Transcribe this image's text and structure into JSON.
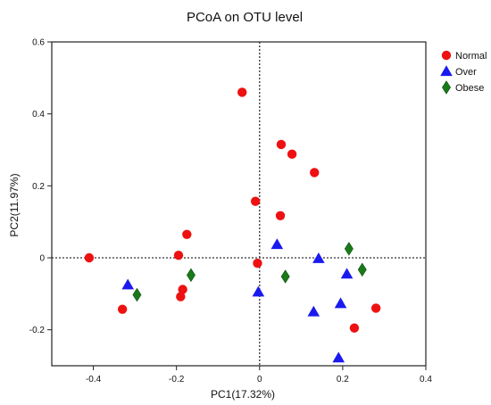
{
  "chart_data": {
    "type": "scatter",
    "title": "PCoA on OTU level",
    "xlabel": "PC1(17.32%)",
    "ylabel": "PC2(11.97%)",
    "xlim": [
      -0.5,
      0.4
    ],
    "ylim": [
      -0.3,
      0.6
    ],
    "xticks": [
      -0.4,
      -0.2,
      0,
      0.2,
      0.4
    ],
    "yticks": [
      -0.2,
      0,
      0.2,
      0.4,
      0.6
    ],
    "xtick_labels": [
      "-0.4",
      "-0.2",
      "0",
      "0.2",
      "0.4"
    ],
    "ytick_labels": [
      "-0.2",
      "0",
      "0.2",
      "0.4",
      "0.6"
    ],
    "reference_lines": {
      "x": 0,
      "y": 0,
      "style": "dotted"
    },
    "grid": false,
    "legend_position": "top-right outside",
    "series": [
      {
        "name": "Normal",
        "marker": "circle",
        "color": "#ee1111",
        "points": [
          [
            -0.41,
            0.0
          ],
          [
            -0.33,
            -0.143
          ],
          [
            -0.195,
            0.007
          ],
          [
            -0.19,
            -0.108
          ],
          [
            -0.185,
            -0.088
          ],
          [
            -0.175,
            0.065
          ],
          [
            -0.042,
            0.46
          ],
          [
            -0.01,
            0.157
          ],
          [
            -0.005,
            -0.015
          ],
          [
            0.05,
            0.117
          ],
          [
            0.052,
            0.315
          ],
          [
            0.078,
            0.288
          ],
          [
            0.132,
            0.237
          ],
          [
            0.228,
            -0.195
          ],
          [
            0.28,
            -0.14
          ]
        ]
      },
      {
        "name": "Over",
        "marker": "triangle",
        "color": "#1a1aee",
        "points": [
          [
            -0.317,
            -0.075
          ],
          [
            -0.003,
            -0.095
          ],
          [
            0.042,
            0.037
          ],
          [
            0.13,
            -0.15
          ],
          [
            0.142,
            -0.002
          ],
          [
            0.195,
            -0.127
          ],
          [
            0.21,
            -0.045
          ],
          [
            0.19,
            -0.278
          ]
        ]
      },
      {
        "name": "Obese",
        "marker": "diamond",
        "color": "#1a7a1a",
        "points": [
          [
            -0.295,
            -0.103
          ],
          [
            -0.165,
            -0.048
          ],
          [
            0.062,
            -0.052
          ],
          [
            0.215,
            0.025
          ],
          [
            0.247,
            -0.033
          ]
        ]
      }
    ]
  }
}
